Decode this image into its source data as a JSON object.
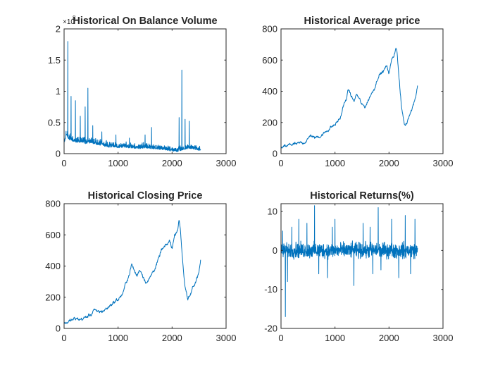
{
  "colors": {
    "line": "#0072BD",
    "axis": "#262626",
    "background": "#ffffff"
  },
  "chart_data": [
    {
      "id": "obv",
      "type": "line",
      "title": "Historical On Balance Volume",
      "xlim": [
        0,
        3000
      ],
      "ylim": [
        0,
        2
      ],
      "xticks": [
        "0",
        "1000",
        "2000",
        "3000"
      ],
      "yticks": [
        "0",
        "0.5",
        "1",
        "1.5",
        "2"
      ],
      "ytick_values": [
        0,
        0.5,
        1,
        1.5,
        2
      ],
      "xtick_values": [
        0,
        1000,
        2000,
        3000
      ],
      "y_exponent_label": "×10",
      "y_exponent": "8",
      "grid": false,
      "series": [
        {
          "x": [
            0,
            40,
            70,
            100,
            150,
            200,
            300,
            400,
            500,
            600,
            700,
            800,
            900,
            1000,
            1100,
            1200,
            1300,
            1400,
            1500,
            1600,
            1700,
            1800,
            1900,
            2000,
            2100,
            2200,
            2300,
            2400,
            2500
          ],
          "y": [
            0.15,
            0.3,
            0.25,
            0.22,
            0.2,
            0.18,
            0.17,
            0.16,
            0.17,
            0.14,
            0.13,
            0.1,
            0.1,
            0.09,
            0.1,
            0.09,
            0.08,
            0.08,
            0.09,
            0.08,
            0.07,
            0.06,
            0.05,
            0.04,
            0.03,
            0.06,
            0.08,
            0.07,
            0.05
          ],
          "spikes": [
            [
              70,
              1.8
            ],
            [
              130,
              0.92
            ],
            [
              210,
              0.85
            ],
            [
              300,
              0.6
            ],
            [
              390,
              0.75
            ],
            [
              440,
              1.05
            ],
            [
              530,
              0.45
            ],
            [
              700,
              0.35
            ],
            [
              960,
              0.3
            ],
            [
              1210,
              0.25
            ],
            [
              1500,
              0.3
            ],
            [
              1620,
              0.42
            ],
            [
              2130,
              0.58
            ],
            [
              2180,
              1.34
            ],
            [
              2240,
              0.55
            ],
            [
              2320,
              0.52
            ]
          ],
          "noise": 0.08
        }
      ]
    },
    {
      "id": "avg",
      "type": "line",
      "title": "Historical Average price",
      "xlim": [
        0,
        3000
      ],
      "ylim": [
        0,
        800
      ],
      "xticks": [
        "0",
        "1000",
        "2000",
        "3000"
      ],
      "yticks": [
        "0",
        "200",
        "400",
        "600",
        "800"
      ],
      "ytick_values": [
        0,
        200,
        400,
        600,
        800
      ],
      "xtick_values": [
        0,
        1000,
        2000,
        3000
      ],
      "grid": false,
      "series": [
        {
          "x": [
            0,
            100,
            200,
            300,
            400,
            500,
            550,
            600,
            700,
            800,
            900,
            1000,
            1100,
            1150,
            1200,
            1250,
            1300,
            1350,
            1400,
            1450,
            1500,
            1550,
            1600,
            1650,
            1700,
            1750,
            1800,
            1900,
            1950,
            2000,
            2050,
            2100,
            2130,
            2150,
            2200,
            2230,
            2260,
            2290,
            2330,
            2380,
            2420,
            2460,
            2500,
            2530
          ],
          "y": [
            35,
            45,
            60,
            58,
            70,
            90,
            125,
            100,
            110,
            130,
            165,
            185,
            230,
            300,
            340,
            410,
            370,
            335,
            380,
            350,
            310,
            300,
            330,
            370,
            400,
            440,
            500,
            530,
            560,
            520,
            600,
            640,
            690,
            650,
            420,
            300,
            240,
            180,
            200,
            260,
            280,
            330,
            380,
            440
          ],
          "noise": 10
        }
      ]
    },
    {
      "id": "close",
      "type": "line",
      "title": "Historical Closing Price",
      "xlim": [
        0,
        3000
      ],
      "ylim": [
        0,
        800
      ],
      "xticks": [
        "0",
        "1000",
        "2000",
        "3000"
      ],
      "yticks": [
        "0",
        "200",
        "400",
        "600",
        "800"
      ],
      "ytick_values": [
        0,
        200,
        400,
        600,
        800
      ],
      "xtick_values": [
        0,
        1000,
        2000,
        3000
      ],
      "grid": false,
      "series": [
        {
          "x": [
            0,
            100,
            200,
            300,
            400,
            500,
            550,
            600,
            700,
            800,
            900,
            1000,
            1100,
            1150,
            1200,
            1250,
            1300,
            1350,
            1400,
            1450,
            1500,
            1550,
            1600,
            1650,
            1700,
            1750,
            1800,
            1900,
            1950,
            2000,
            2050,
            2100,
            2130,
            2150,
            2200,
            2230,
            2260,
            2290,
            2330,
            2380,
            2420,
            2460,
            2500,
            2530
          ],
          "y": [
            35,
            45,
            60,
            58,
            70,
            90,
            125,
            100,
            110,
            130,
            165,
            185,
            230,
            300,
            340,
            410,
            370,
            335,
            380,
            350,
            310,
            300,
            330,
            370,
            400,
            440,
            500,
            530,
            560,
            520,
            600,
            640,
            690,
            650,
            420,
            300,
            240,
            175,
            200,
            260,
            280,
            330,
            380,
            440
          ],
          "noise": 11
        }
      ]
    },
    {
      "id": "returns",
      "type": "line",
      "title": "Historical Returns(%)",
      "xlim": [
        0,
        3000
      ],
      "ylim": [
        -20,
        12
      ],
      "xticks": [
        "0",
        "1000",
        "2000",
        "3000"
      ],
      "yticks": [
        "-20",
        "-10",
        "0",
        "10"
      ],
      "ytick_values": [
        -20,
        -10,
        0,
        10
      ],
      "xtick_values": [
        0,
        1000,
        2000,
        3000
      ],
      "grid": false,
      "series": [
        {
          "x_end": 2530,
          "amplitude": 3,
          "spikes": [
            [
              30,
              5
            ],
            [
              80,
              -17
            ],
            [
              120,
              -8
            ],
            [
              200,
              6
            ],
            [
              330,
              8
            ],
            [
              480,
              7
            ],
            [
              620,
              12
            ],
            [
              700,
              -6
            ],
            [
              860,
              -7
            ],
            [
              950,
              6
            ],
            [
              1000,
              8
            ],
            [
              1350,
              -9
            ],
            [
              1520,
              7
            ],
            [
              1650,
              6
            ],
            [
              1700,
              -6
            ],
            [
              1800,
              11
            ],
            [
              1850,
              -5
            ],
            [
              2050,
              8
            ],
            [
              2180,
              -7
            ],
            [
              2300,
              9
            ],
            [
              2400,
              -6
            ],
            [
              2480,
              8
            ]
          ]
        }
      ]
    }
  ]
}
